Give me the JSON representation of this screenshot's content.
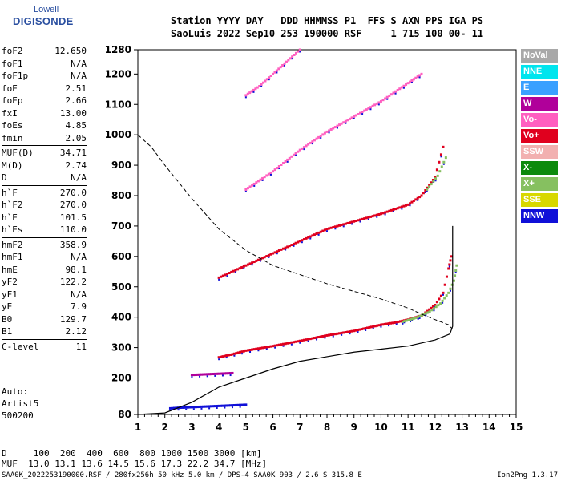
{
  "logo": {
    "top": "Lowell",
    "bottom": "DIGISONDE"
  },
  "header": {
    "line1": "Station YYYY DAY   DDD HHMMSS P1  FFS S AXN PPS IGA PS",
    "line2": "SaoLuis 2022 Sep10 253 190000 RSF     1 715 100 00- 11"
  },
  "params": {
    "groups": [
      [
        {
          "name": "foF2",
          "value": "12.650"
        },
        {
          "name": "foF1",
          "value": "N/A"
        },
        {
          "name": "foF1p",
          "value": "N/A"
        },
        {
          "name": "foE",
          "value": "2.51"
        },
        {
          "name": "foEp",
          "value": "2.66"
        },
        {
          "name": "fxI",
          "value": "13.00"
        },
        {
          "name": "foEs",
          "value": "4.85"
        },
        {
          "name": "fmin",
          "value": "2.05"
        }
      ],
      [
        {
          "name": "MUF(D)",
          "value": "34.71"
        },
        {
          "name": "M(D)",
          "value": "2.74"
        },
        {
          "name": "D",
          "value": "N/A"
        }
      ],
      [
        {
          "name": "h`F",
          "value": "270.0"
        },
        {
          "name": "h`F2",
          "value": "270.0"
        },
        {
          "name": "h`E",
          "value": "101.5"
        },
        {
          "name": "h`Es",
          "value": "110.0"
        }
      ],
      [
        {
          "name": "hmF2",
          "value": "358.9"
        },
        {
          "name": "hmF1",
          "value": "N/A"
        },
        {
          "name": "hmE",
          "value": "98.1"
        },
        {
          "name": "yF2",
          "value": "122.2"
        },
        {
          "name": "yF1",
          "value": "N/A"
        },
        {
          "name": "yE",
          "value": "7.9"
        },
        {
          "name": "B0",
          "value": "129.7"
        },
        {
          "name": "B1",
          "value": "2.12"
        }
      ],
      [
        {
          "name": "C-level",
          "value": "11"
        }
      ]
    ],
    "auto": [
      "Auto:",
      "Artist5",
      "500200"
    ]
  },
  "legend": [
    {
      "label": "NoVal",
      "color": "#a8a8a8"
    },
    {
      "label": "NNE",
      "color": "#00e5ee"
    },
    {
      "label": "E",
      "color": "#3aa0ff"
    },
    {
      "label": "W",
      "color": "#b0009a"
    },
    {
      "label": "Vo-",
      "color": "#ff5fc0"
    },
    {
      "label": "Vo+",
      "color": "#e0001e"
    },
    {
      "label": "SSW",
      "color": "#f2b0b0"
    },
    {
      "label": "X-",
      "color": "#0c8a0c"
    },
    {
      "label": "X+",
      "color": "#86c060"
    },
    {
      "label": "SSE",
      "color": "#d8d800"
    },
    {
      "label": "NNW",
      "color": "#1010d8"
    }
  ],
  "bottom": {
    "d_line": "D     100  200  400  600  800 1000 1500 3000 [km]",
    "muf_line": "MUF  13.0 13.1 13.6 14.5 15.6 17.3 22.2 34.7 [MHz]",
    "footer": "SAA0K_2022253190000.RSF / 280fx256h 50 kHz 5.0 km / DPS-4 SAA0K 903 / 2.6 S 315.8 E",
    "version": "Ion2Png 1.3.17"
  },
  "chart_data": {
    "type": "scatter",
    "xlim": [
      1,
      15
    ],
    "ylim": [
      80,
      1280
    ],
    "x_ticks": [
      "1",
      "2",
      "3",
      "4",
      "5",
      "6",
      "7",
      "8",
      "9",
      "10",
      "11",
      "12",
      "13",
      "14",
      "15"
    ],
    "y_ticks": [
      "80",
      "200",
      "300",
      "400",
      "500",
      "600",
      "700",
      "800",
      "900",
      "1000",
      "1100",
      "1200",
      "1280"
    ],
    "y_tick_values": [
      80,
      200,
      300,
      400,
      500,
      600,
      700,
      800,
      900,
      1000,
      1100,
      1200,
      1280
    ],
    "traces": [
      {
        "name": "F2 O-trace",
        "color": "#e0001e",
        "points": [
          [
            4,
            268
          ],
          [
            4.5,
            278
          ],
          [
            5,
            290
          ],
          [
            6,
            305
          ],
          [
            7,
            322
          ],
          [
            8,
            340
          ],
          [
            9,
            355
          ],
          [
            9.5,
            365
          ],
          [
            10,
            375
          ],
          [
            10.5,
            382
          ],
          [
            11,
            392
          ],
          [
            11.5,
            405
          ],
          [
            12,
            440
          ],
          [
            12.3,
            480
          ],
          [
            12.5,
            560
          ],
          [
            12.6,
            600
          ]
        ]
      },
      {
        "name": "F2 X-trace",
        "color": "#86c060",
        "points": [
          [
            10.8,
            385
          ],
          [
            11.3,
            398
          ],
          [
            11.8,
            418
          ],
          [
            12.2,
            445
          ],
          [
            12.5,
            480
          ],
          [
            12.7,
            520
          ],
          [
            12.8,
            570
          ]
        ]
      },
      {
        "name": "F2 2-hop",
        "color": "#e0001e",
        "points": [
          [
            4,
            530
          ],
          [
            5,
            570
          ],
          [
            6,
            610
          ],
          [
            7,
            650
          ],
          [
            8,
            690
          ],
          [
            9,
            715
          ],
          [
            10,
            740
          ],
          [
            11,
            770
          ],
          [
            11.5,
            800
          ],
          [
            12,
            860
          ],
          [
            12.3,
            960
          ]
        ]
      },
      {
        "name": "F2 2-hop X",
        "color": "#86c060",
        "points": [
          [
            11.7,
            820
          ],
          [
            12.1,
            865
          ],
          [
            12.4,
            925
          ]
        ]
      },
      {
        "name": "F2 3-hop",
        "color": "#ff5fc0",
        "points": [
          [
            5,
            820
          ],
          [
            6,
            880
          ],
          [
            7,
            950
          ],
          [
            8,
            1010
          ],
          [
            9,
            1060
          ],
          [
            10,
            1110
          ],
          [
            11,
            1170
          ],
          [
            11.5,
            1200
          ]
        ]
      },
      {
        "name": "F2 4-hop",
        "color": "#ff5fc0",
        "points": [
          [
            5,
            1130
          ],
          [
            5.5,
            1160
          ],
          [
            6,
            1200
          ],
          [
            6.5,
            1240
          ],
          [
            7,
            1280
          ]
        ]
      },
      {
        "name": "Es",
        "color": "#1010d8",
        "points": [
          [
            2.2,
            100
          ],
          [
            2.5,
            102
          ],
          [
            3,
            104
          ],
          [
            3.5,
            106
          ],
          [
            4,
            108
          ],
          [
            4.5,
            110
          ],
          [
            5,
            112
          ]
        ]
      },
      {
        "name": "Es 2-hop",
        "color": "#b0009a",
        "points": [
          [
            3,
            210
          ],
          [
            3.5,
            212
          ],
          [
            4,
            214
          ],
          [
            4.5,
            216
          ]
        ]
      }
    ],
    "profile": [
      [
        1,
        80
      ],
      [
        2,
        85
      ],
      [
        3,
        120
      ],
      [
        4,
        170
      ],
      [
        5,
        200
      ],
      [
        6,
        230
      ],
      [
        7,
        255
      ],
      [
        8,
        270
      ],
      [
        9,
        285
      ],
      [
        10,
        295
      ],
      [
        11,
        305
      ],
      [
        12,
        325
      ],
      [
        12.55,
        345
      ],
      [
        12.65,
        370
      ],
      [
        12.65,
        480
      ],
      [
        12.65,
        600
      ],
      [
        12.65,
        700
      ]
    ],
    "muf_curve": [
      [
        1,
        1000
      ],
      [
        1.5,
        960
      ],
      [
        2,
        900
      ],
      [
        3,
        790
      ],
      [
        4,
        690
      ],
      [
        5,
        620
      ],
      [
        6,
        570
      ],
      [
        7,
        540
      ],
      [
        8,
        510
      ],
      [
        9,
        485
      ],
      [
        10,
        460
      ],
      [
        11,
        430
      ],
      [
        11.5,
        410
      ],
      [
        12,
        392
      ],
      [
        12.5,
        375
      ],
      [
        12.65,
        360
      ]
    ]
  }
}
